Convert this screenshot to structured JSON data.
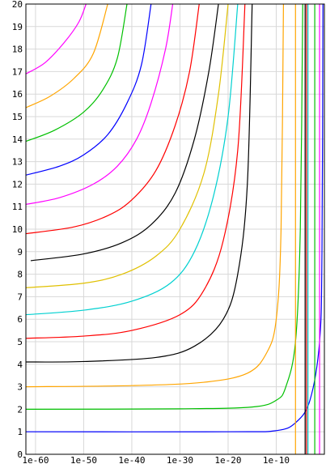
{
  "chart_data": {
    "type": "line",
    "title": "",
    "xlabel": "",
    "ylabel": "",
    "x_scale": "log",
    "xlim": [
      "1e-62",
      "1e0"
    ],
    "ylim": [
      0,
      20
    ],
    "x_ticks": [
      {
        "value": "1e-60",
        "label": "1e-60"
      },
      {
        "value": "1e-50",
        "label": "1e-50"
      },
      {
        "value": "1e-40",
        "label": "1e-40"
      },
      {
        "value": "1e-30",
        "label": "1e-30"
      },
      {
        "value": "1e-20",
        "label": "1e-20"
      },
      {
        "value": "1e-10",
        "label": "1e-10"
      }
    ],
    "y_ticks": [
      "0",
      "1",
      "2",
      "3",
      "4",
      "5",
      "6",
      "7",
      "8",
      "9",
      "10",
      "11",
      "12",
      "13",
      "14",
      "15",
      "16",
      "17",
      "18",
      "19",
      "20"
    ],
    "grid": true,
    "legend": "none",
    "series": [
      {
        "color": "#0000ff",
        "points": [
          [
            "1e-62",
            1.0
          ],
          [
            "1e-20",
            1.0
          ],
          [
            "1e-10",
            1.05
          ],
          [
            "1e-6",
            1.4
          ],
          [
            "1e-3",
            2.4
          ],
          [
            "1e-1",
            5.0
          ],
          [
            "1e-0.5",
            9.0
          ],
          [
            "1e-0.3",
            20
          ]
        ]
      },
      {
        "color": "#00c000",
        "points": [
          [
            "1e-62",
            2.0
          ],
          [
            "1e-30",
            2.02
          ],
          [
            "1e-15",
            2.1
          ],
          [
            "1e-10",
            2.4
          ],
          [
            "1e-8",
            3.0
          ],
          [
            "1e-6",
            5.0
          ],
          [
            "1e-5",
            10.0
          ],
          [
            "1e-4.5",
            20
          ]
        ]
      },
      {
        "color": "#ffa500",
        "points": [
          [
            "1e-62",
            3.0
          ],
          [
            "1e-40",
            3.05
          ],
          [
            "1e-25",
            3.2
          ],
          [
            "1e-16",
            3.6
          ],
          [
            "1e-12",
            4.5
          ],
          [
            "1e-10",
            6.0
          ],
          [
            "1e-9",
            10.0
          ],
          [
            "1e-8.5",
            20
          ]
        ]
      },
      {
        "color": "#000000",
        "points": [
          [
            "1e-62",
            4.1
          ],
          [
            "1e-50",
            4.12
          ],
          [
            "1e-35",
            4.3
          ],
          [
            "1e-27",
            4.8
          ],
          [
            "1e-21",
            6.0
          ],
          [
            "1e-18",
            8.0
          ],
          [
            "1e-16",
            12.0
          ],
          [
            "1e-15",
            20
          ]
        ]
      },
      {
        "color": "#ff0000",
        "points": [
          [
            "1e-62",
            5.15
          ],
          [
            "1e-50",
            5.25
          ],
          [
            "1e-40",
            5.5
          ],
          [
            "1e-30",
            6.2
          ],
          [
            "1e-25",
            7.3
          ],
          [
            "1e-21",
            9.5
          ],
          [
            "1e-18",
            13.5
          ],
          [
            "1e-16.5",
            20
          ]
        ]
      },
      {
        "color": "#00d0d0",
        "points": [
          [
            "1e-62",
            6.2
          ],
          [
            "1e-50",
            6.4
          ],
          [
            "1e-40",
            6.8
          ],
          [
            "1e-32",
            7.6
          ],
          [
            "1e-27",
            9.0
          ],
          [
            "1e-23",
            11.5
          ],
          [
            "1e-20",
            15.0
          ],
          [
            "1e-18",
            20
          ]
        ]
      },
      {
        "color": "#e0c000",
        "points": [
          [
            "1e-62",
            7.4
          ],
          [
            "1e-50",
            7.6
          ],
          [
            "1e-42",
            8.0
          ],
          [
            "1e-35",
            8.8
          ],
          [
            "1e-30",
            10.0
          ],
          [
            "1e-25",
            12.5
          ],
          [
            "1e-22",
            16.0
          ],
          [
            "1e-20",
            20
          ]
        ]
      },
      {
        "color": "#000000",
        "points": [
          [
            "1e-61",
            8.6
          ],
          [
            "1e-50",
            8.9
          ],
          [
            "1e-42",
            9.4
          ],
          [
            "1e-36",
            10.2
          ],
          [
            "1e-31",
            11.6
          ],
          [
            "1e-27",
            14.0
          ],
          [
            "1e-24",
            17.0
          ],
          [
            "1e-22",
            20
          ]
        ]
      },
      {
        "color": "#ff0000",
        "points": [
          [
            "1e-62",
            9.8
          ],
          [
            "1e-52",
            10.1
          ],
          [
            "1e-45",
            10.6
          ],
          [
            "1e-40",
            11.3
          ],
          [
            "1e-35",
            12.6
          ],
          [
            "1e-31",
            14.6
          ],
          [
            "1e-28",
            17.0
          ],
          [
            "1e-26",
            20
          ]
        ]
      },
      {
        "color": "#ff00ff",
        "points": [
          [
            "1e-62",
            11.1
          ],
          [
            "1e-55",
            11.4
          ],
          [
            "1e-48",
            12.0
          ],
          [
            "1e-43",
            12.8
          ],
          [
            "1e-39",
            14.0
          ],
          [
            "1e-36",
            15.6
          ],
          [
            "1e-33",
            18.0
          ],
          [
            "1e-31.5",
            20
          ]
        ]
      },
      {
        "color": "#0000ff",
        "points": [
          [
            "1e-62",
            12.4
          ],
          [
            "1e-55",
            12.8
          ],
          [
            "1e-50",
            13.3
          ],
          [
            "1e-45",
            14.2
          ],
          [
            "1e-41",
            15.6
          ],
          [
            "1e-38",
            17.3
          ],
          [
            "1e-36",
            20
          ]
        ]
      },
      {
        "color": "#00c000",
        "points": [
          [
            "1e-62",
            13.9
          ],
          [
            "1e-56",
            14.4
          ],
          [
            "1e-50",
            15.2
          ],
          [
            "1e-46",
            16.2
          ],
          [
            "1e-43",
            17.6
          ],
          [
            "1e-41",
            20
          ]
        ]
      },
      {
        "color": "#ffa500",
        "points": [
          [
            "1e-62",
            15.4
          ],
          [
            "1e-57",
            15.9
          ],
          [
            "1e-52",
            16.7
          ],
          [
            "1e-48",
            17.8
          ],
          [
            "1e-45",
            20
          ]
        ]
      },
      {
        "color": "#ff00ff",
        "points": [
          [
            "1e-62",
            16.9
          ],
          [
            "1e-58",
            17.4
          ],
          [
            "1e-54",
            18.3
          ],
          [
            "1e-51",
            19.2
          ],
          [
            "1e-49.5",
            20
          ]
        ]
      },
      {
        "color": "#000000",
        "points": [
          [
            "1e-4",
            0
          ],
          [
            "1e-4",
            20
          ]
        ]
      },
      {
        "color": "#ff0000",
        "points": [
          [
            "1e-3.7",
            0
          ],
          [
            "1e-3.7",
            20
          ]
        ]
      },
      {
        "color": "#00d0d0",
        "points": [
          [
            "1e-3.4",
            0
          ],
          [
            "1e-3.4",
            20
          ]
        ]
      },
      {
        "color": "#ffa500",
        "points": [
          [
            "1e-6",
            0
          ],
          [
            "1e-6",
            20
          ]
        ]
      },
      {
        "color": "#00c000",
        "points": [
          [
            "1e-2",
            0
          ],
          [
            "1e-2",
            20
          ]
        ]
      },
      {
        "color": "#ff00ff",
        "points": [
          [
            "1e-1",
            0
          ],
          [
            "1e-1",
            20
          ]
        ]
      }
    ]
  }
}
